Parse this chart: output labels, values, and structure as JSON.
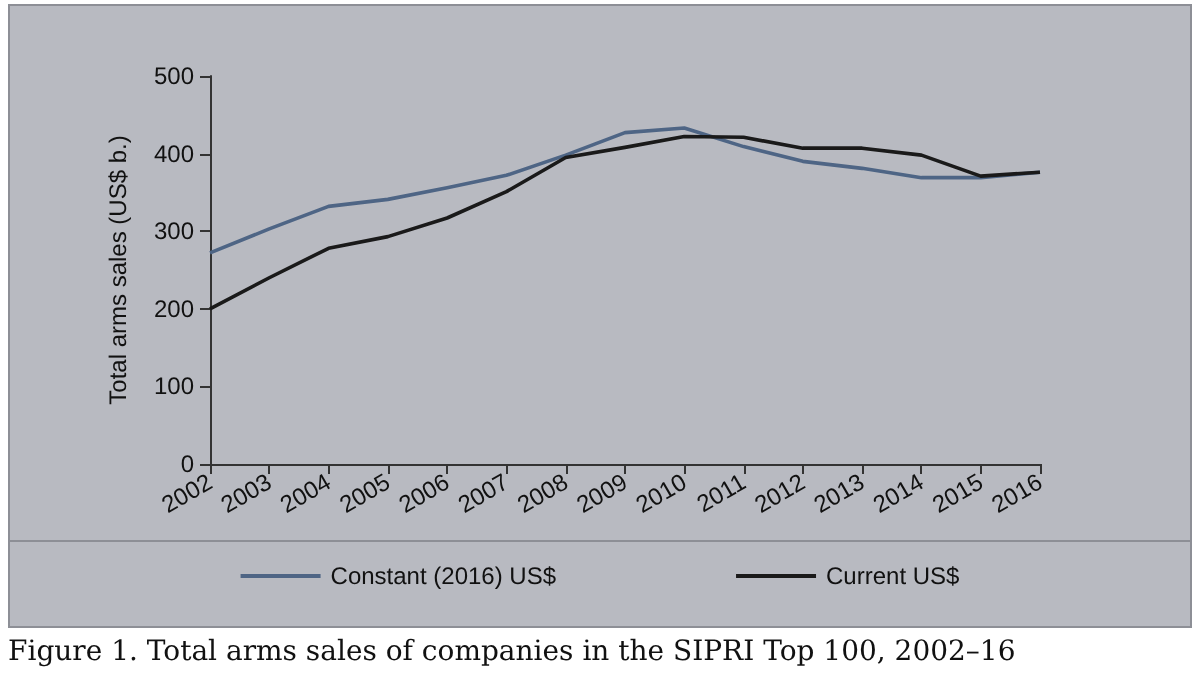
{
  "chart_data": {
    "type": "line",
    "ylabel": "Total arms sales (US$ b.)",
    "categories": [
      "2002",
      "2003",
      "2004",
      "2005",
      "2006",
      "2007",
      "2008",
      "2009",
      "2010",
      "2011",
      "2012",
      "2013",
      "2014",
      "2015",
      "2016"
    ],
    "series": [
      {
        "name": "Constant (2016) US$",
        "color": "#4e6585",
        "values": [
          272,
          303,
          332,
          341,
          356,
          372,
          398,
          427,
          433,
          409,
          390,
          381,
          369,
          369,
          376
        ]
      },
      {
        "name": "Current US$",
        "color": "#1a1a1a",
        "values": [
          200,
          240,
          278,
          293,
          317,
          351,
          395,
          408,
          422,
          421,
          407,
          407,
          398,
          371,
          376
        ]
      }
    ],
    "ylim": [
      0,
      500
    ],
    "yticks": [
      0,
      100,
      200,
      300,
      400,
      500
    ],
    "grid": false,
    "legend": "bottom",
    "marker": "none",
    "line_style": "solid",
    "annotations": [
      "Figure 1. Total arms sales of companies in the SIPRI Top 100, 2002–16"
    ]
  }
}
